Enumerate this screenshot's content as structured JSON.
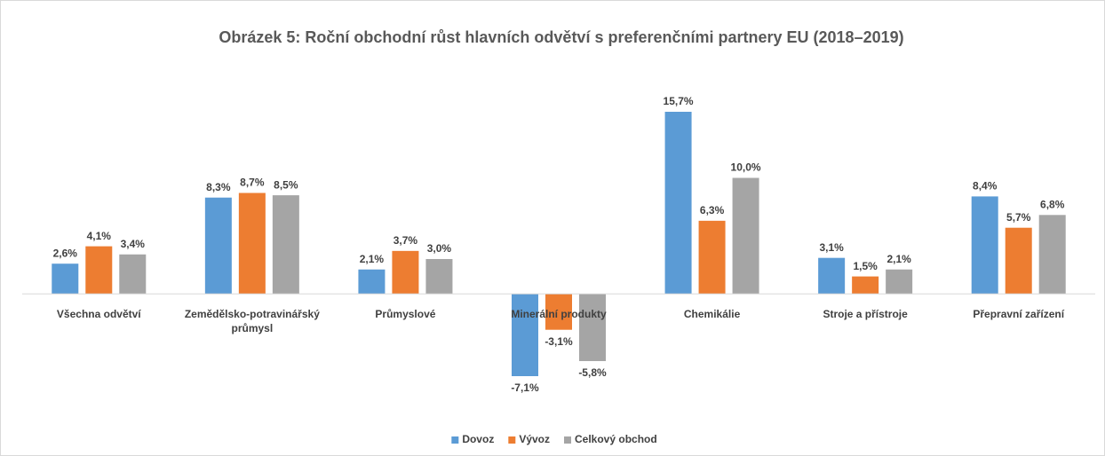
{
  "chart_data": {
    "type": "bar",
    "title": "Obrázek 5: Roční obchodní růst hlavních odvětví s preferenčními partnery EU (2018–2019)",
    "categories": [
      "Všechna odvětví",
      "Zemědělsko-potravinářský průmysl",
      "Průmyslové",
      "Minerální produkty",
      "Chemikálie",
      "Stroje a přístroje",
      "Přepravní zařízení"
    ],
    "series": [
      {
        "name": "Dovoz",
        "color": "#5b9bd5",
        "values": [
          2.6,
          8.3,
          2.1,
          -7.1,
          15.7,
          3.1,
          8.4
        ],
        "value_labels": [
          "2,6%",
          "8,3%",
          "2,1%",
          "-7,1%",
          "15,7%",
          "3,1%",
          "8,4%"
        ]
      },
      {
        "name": "Vývoz",
        "color": "#ed7d31",
        "values": [
          4.1,
          8.7,
          3.7,
          -3.1,
          6.3,
          1.5,
          5.7
        ],
        "value_labels": [
          "4,1%",
          "8,7%",
          "3,7%",
          "-3,1%",
          "6,3%",
          "1,5%",
          "5,7%"
        ]
      },
      {
        "name": "Celkový obchod",
        "color": "#a5a5a5",
        "values": [
          3.4,
          8.5,
          3.0,
          -5.8,
          10.0,
          2.1,
          6.8
        ],
        "value_labels": [
          "3,4%",
          "8,5%",
          "3,0%",
          "-5,8%",
          "10,0%",
          "2,1%",
          "6,8%"
        ]
      }
    ],
    "legend": "bottom"
  }
}
